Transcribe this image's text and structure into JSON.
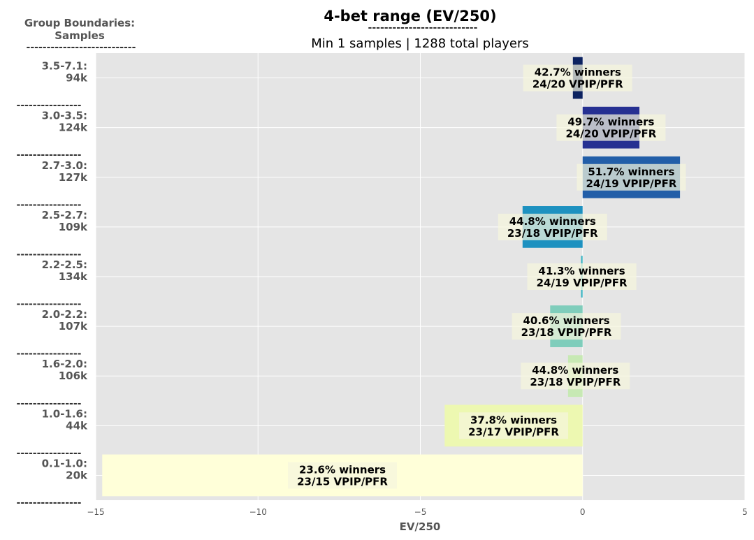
{
  "chart_data": {
    "type": "bar",
    "orientation": "horizontal",
    "title": "4-bet range (EV/250)",
    "title_underline": "---------------------------",
    "subtitle": "Min 1 samples | 1288 total players",
    "side_header": [
      "Group Boundaries:",
      "Samples"
    ],
    "side_header_underline": "---------------------------",
    "group_separator": "----------------",
    "xlabel": "EV/250",
    "xlim": [
      -15,
      5
    ],
    "xticks": [
      -15,
      -10,
      -5,
      0,
      5
    ],
    "xtick_labels": [
      "−15",
      "−10",
      "−5",
      "0",
      "5"
    ],
    "grid": true,
    "categories": [
      {
        "label": "3.5-7.1:",
        "samples": "94k",
        "value": -0.3,
        "winners": "42.7% winners",
        "vpip": "24/20 VPIP/PFR",
        "color": "#0c2260"
      },
      {
        "label": "3.0-3.5:",
        "samples": "124k",
        "value": 1.75,
        "winners": "49.7% winners",
        "vpip": "24/20 VPIP/PFR",
        "color": "#263092"
      },
      {
        "label": "2.7-3.0:",
        "samples": "127k",
        "value": 3.0,
        "winners": "51.7% winners",
        "vpip": "24/19 VPIP/PFR",
        "color": "#225ea8"
      },
      {
        "label": "2.5-2.7:",
        "samples": "109k",
        "value": -1.85,
        "winners": "44.8% winners",
        "vpip": "23/18 VPIP/PFR",
        "color": "#1d91c0"
      },
      {
        "label": "2.2-2.5:",
        "samples": "134k",
        "value": -0.05,
        "winners": "41.3% winners",
        "vpip": "24/19 VPIP/PFR",
        "color": "#41b6c4"
      },
      {
        "label": "2.0-2.2:",
        "samples": "107k",
        "value": -1.0,
        "winners": "40.6% winners",
        "vpip": "23/18 VPIP/PFR",
        "color": "#7fcdbb"
      },
      {
        "label": "1.6-2.0:",
        "samples": "106k",
        "value": -0.45,
        "winners": "44.8% winners",
        "vpip": "23/18 VPIP/PFR",
        "color": "#c7e9b4"
      },
      {
        "label": "1.0-1.6:",
        "samples": "44k",
        "value": -4.25,
        "winners": "37.8% winners",
        "vpip": "23/17 VPIP/PFR",
        "color": "#edf8b1"
      },
      {
        "label": "0.1-1.0:",
        "samples": "20k",
        "value": -14.8,
        "winners": "23.6% winners",
        "vpip": "23/15 VPIP/PFR",
        "color": "#ffffd9"
      }
    ]
  }
}
